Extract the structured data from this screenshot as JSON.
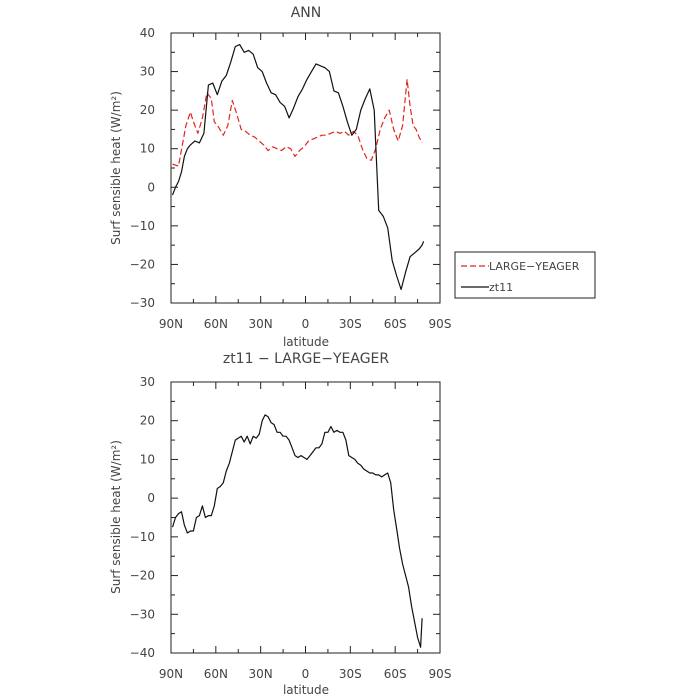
{
  "chart_data": [
    {
      "type": "line",
      "title": "ANN",
      "xlabel": "latitude",
      "ylabel": "Surf sensible heat (W/m²)",
      "xlim": [
        90,
        -90
      ],
      "ylim": [
        -30,
        40
      ],
      "xticks": [
        90,
        60,
        30,
        0,
        -30,
        -60,
        -90
      ],
      "xtick_labels": [
        "90N",
        "60N",
        "30N",
        "0",
        "30S",
        "60S",
        "90S"
      ],
      "yticks": [
        -30,
        -20,
        -10,
        0,
        10,
        20,
        30,
        40
      ],
      "ytick_labels": [
        "−30",
        "−20",
        "−10",
        "0",
        "10",
        "20",
        "30",
        "40"
      ],
      "grid": false,
      "legend_position": "outside-right",
      "series": [
        {
          "name": "LARGE−YEAGER",
          "color": "#e0261e",
          "dash": "dashed",
          "x": [
            89,
            85,
            80,
            77,
            75,
            72,
            69,
            66,
            63,
            61,
            58,
            55,
            52,
            49,
            46,
            43,
            40,
            37,
            34,
            31,
            28,
            25,
            22,
            19,
            16,
            13,
            10,
            7,
            4,
            1,
            -2,
            -5,
            -8,
            -11,
            -14,
            -17,
            -20,
            -23,
            -26,
            -29,
            -32,
            -35,
            -38,
            -41,
            -44,
            -47,
            -50,
            -53,
            -56,
            -59,
            -62,
            -65,
            -68,
            -70,
            -72,
            -74,
            -76,
            -78
          ],
          "y": [
            6,
            5.5,
            16,
            19.5,
            17,
            14,
            18,
            24.5,
            23,
            17,
            15.5,
            13.5,
            16,
            22.5,
            19,
            15,
            14.5,
            13.5,
            13,
            12,
            11,
            9.5,
            10.5,
            10,
            9.5,
            10.5,
            10,
            8,
            9.5,
            10.5,
            12,
            12.5,
            13,
            13.5,
            13.5,
            14,
            14.5,
            14,
            14.5,
            13.5,
            14.5,
            13.5,
            10,
            7.5,
            7,
            10,
            15,
            18,
            20,
            15,
            12,
            16,
            28,
            21,
            16,
            15,
            13,
            11.5
          ]
        },
        {
          "name": "zt11",
          "color": "#111111",
          "dash": "solid",
          "x": [
            89,
            87,
            85,
            83,
            81,
            79,
            77,
            74,
            71,
            68,
            65,
            62,
            59,
            56,
            53,
            50,
            47,
            44,
            41,
            38,
            35,
            32,
            29,
            26,
            23,
            20,
            17,
            14,
            11,
            8,
            5,
            2,
            -1,
            -4,
            -7,
            -10,
            -13,
            -16,
            -19,
            -22,
            -25,
            -28,
            -31,
            -34,
            -37,
            -40,
            -43,
            -46,
            -49,
            -52,
            -55,
            -58,
            -61,
            -64,
            -67,
            -70,
            -73,
            -76,
            -78,
            -79
          ],
          "y": [
            -2,
            0,
            1.5,
            4,
            8,
            10,
            11,
            12,
            11.5,
            14,
            26.5,
            27,
            24,
            27.5,
            29,
            32.5,
            36.5,
            37,
            35,
            35.5,
            34.5,
            31,
            30,
            27,
            24.5,
            24,
            22,
            21,
            18,
            20.5,
            23.5,
            25.5,
            28,
            30,
            32,
            31.5,
            31,
            30,
            25,
            24.5,
            21,
            17,
            13.5,
            15,
            20,
            23,
            25.5,
            20,
            -6,
            -7.5,
            -10.5,
            -19,
            -23,
            -26.5,
            -22,
            -18,
            -17,
            -16,
            -15,
            -14
          ]
        }
      ]
    },
    {
      "type": "line",
      "title": "zt11 − LARGE−YEAGER",
      "xlabel": "latitude",
      "ylabel": "Surf sensible heat (W/m²)",
      "xlim": [
        90,
        -90
      ],
      "ylim": [
        -40,
        30
      ],
      "xticks": [
        90,
        60,
        30,
        0,
        -30,
        -60,
        -90
      ],
      "xtick_labels": [
        "90N",
        "60N",
        "30N",
        "0",
        "30S",
        "60S",
        "90S"
      ],
      "yticks": [
        -40,
        -30,
        -20,
        -10,
        0,
        10,
        20,
        30
      ],
      "ytick_labels": [
        "−40",
        "−30",
        "−20",
        "−10",
        "0",
        "10",
        "20",
        "30"
      ],
      "grid": false,
      "series": [
        {
          "color": "#111111",
          "dash": "solid",
          "x": [
            89,
            87,
            85,
            83,
            81,
            79,
            77,
            75,
            73,
            71,
            69,
            67,
            65,
            63,
            61,
            59,
            57,
            55,
            53,
            51,
            49,
            47,
            45,
            43,
            41,
            39,
            37,
            35,
            33,
            31,
            29,
            27,
            25,
            23,
            21,
            19,
            17,
            15,
            13,
            11,
            9,
            7,
            5,
            3,
            1,
            -1,
            -3,
            -5,
            -7,
            -9,
            -11,
            -13,
            -15,
            -17,
            -19,
            -21,
            -23,
            -25,
            -27,
            -29,
            -31,
            -33,
            -35,
            -37,
            -39,
            -41,
            -43,
            -45,
            -47,
            -49,
            -51,
            -53,
            -55,
            -57,
            -59,
            -61,
            -63,
            -65,
            -67,
            -69,
            -71,
            -73,
            -75,
            -77,
            -78
          ],
          "y": [
            -7.5,
            -5,
            -4,
            -3.5,
            -7,
            -9,
            -8.5,
            -8.5,
            -5,
            -4.5,
            -2,
            -5,
            -4.5,
            -4.5,
            -2,
            2.5,
            3,
            4,
            7,
            9,
            12,
            15,
            15.5,
            16,
            14.5,
            16,
            14,
            16,
            15.5,
            16.5,
            20,
            21.5,
            21,
            19.5,
            19,
            17,
            17,
            16,
            16,
            15,
            13,
            11,
            10.5,
            11,
            10.5,
            10,
            11,
            12,
            13,
            13,
            14,
            17,
            17,
            18.5,
            17,
            17.5,
            17,
            17,
            15,
            11,
            10.5,
            10,
            9,
            8.5,
            7.5,
            7,
            6.5,
            6.5,
            6,
            6,
            5.5,
            6,
            6.5,
            4,
            -3,
            -8,
            -13,
            -17,
            -20,
            -23,
            -28,
            -32,
            -36,
            -38.5,
            -31
          ]
        }
      ]
    }
  ],
  "legend": {
    "entries": [
      {
        "label": "LARGE−YEAGER",
        "color": "#e0261e",
        "dash": "dashed"
      },
      {
        "label": "zt11",
        "color": "#111111",
        "dash": "solid"
      }
    ]
  }
}
